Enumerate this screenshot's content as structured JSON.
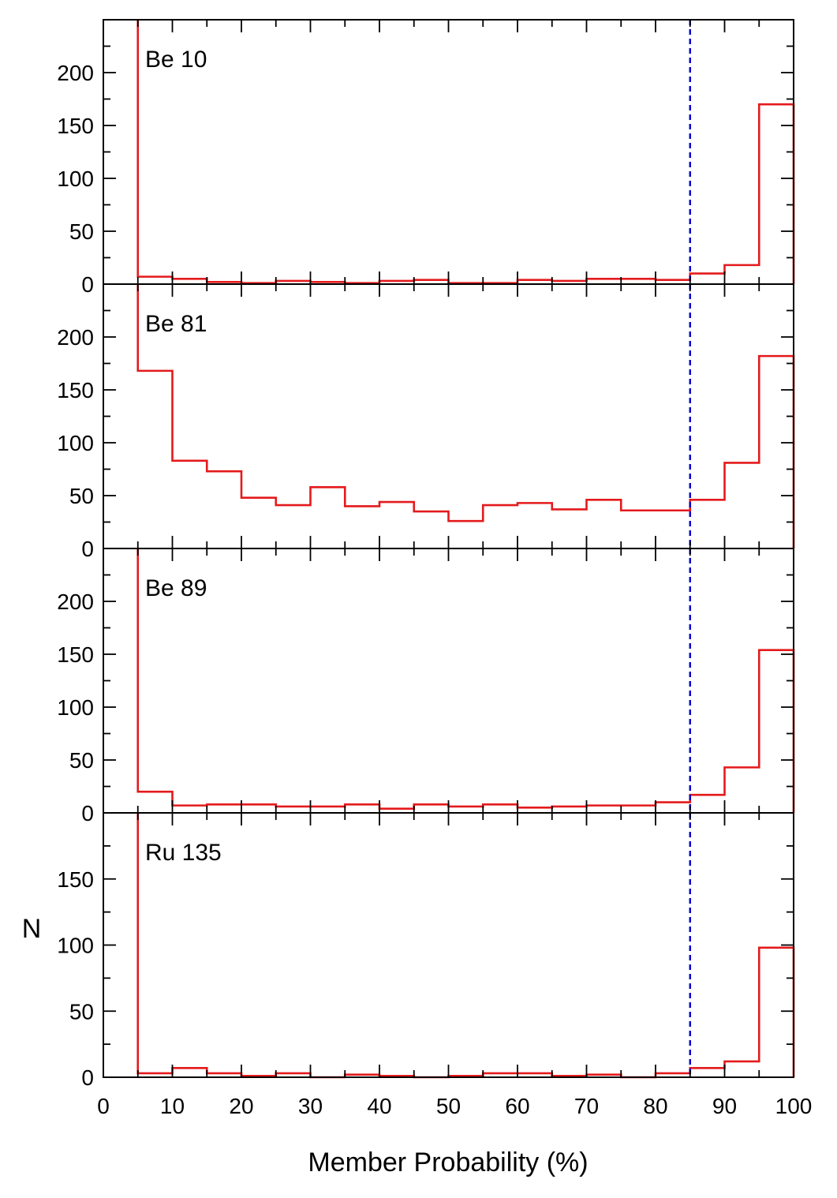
{
  "chart_data": {
    "type": "bar",
    "subtype": "step-histogram",
    "xlabel": "Member Probability (%)",
    "ylabel": "N",
    "xlim": [
      0,
      100
    ],
    "x_ticks": [
      0,
      10,
      20,
      30,
      40,
      50,
      60,
      70,
      80,
      90,
      100
    ],
    "bin_edges": [
      5,
      10,
      15,
      20,
      25,
      30,
      35,
      40,
      45,
      50,
      55,
      60,
      65,
      70,
      75,
      80,
      85,
      90,
      95,
      100
    ],
    "threshold_line": {
      "x": 85,
      "style": "dashed",
      "color": "#0000cc"
    },
    "series_color": "#e41a1c",
    "panels": [
      {
        "label": "Be 10",
        "ylim": [
          0,
          250
        ],
        "y_ticks": [
          0,
          50,
          100,
          150,
          200
        ],
        "values": [
          7,
          5,
          2,
          1,
          3,
          2,
          1,
          3,
          4,
          1,
          1,
          4,
          3,
          5,
          5,
          4,
          10,
          18,
          170
        ]
      },
      {
        "label": "Be 81",
        "ylim": [
          0,
          250
        ],
        "y_ticks": [
          0,
          50,
          100,
          150,
          200
        ],
        "values": [
          168,
          83,
          73,
          48,
          41,
          58,
          40,
          44,
          35,
          26,
          41,
          43,
          37,
          46,
          36,
          36,
          46,
          81,
          182
        ]
      },
      {
        "label": "Be 89",
        "ylim": [
          0,
          250
        ],
        "y_ticks": [
          0,
          50,
          100,
          150,
          200
        ],
        "values": [
          20,
          7,
          8,
          8,
          6,
          6,
          8,
          4,
          8,
          6,
          8,
          5,
          6,
          7,
          7,
          10,
          17,
          43,
          154
        ]
      },
      {
        "label": "Ru 135",
        "ylim": [
          0,
          200
        ],
        "y_ticks": [
          0,
          50,
          100,
          150
        ],
        "values": [
          3,
          7,
          3,
          1,
          3,
          0,
          2,
          1,
          0,
          1,
          3,
          3,
          1,
          2,
          0,
          3,
          7,
          12,
          98
        ]
      }
    ]
  }
}
